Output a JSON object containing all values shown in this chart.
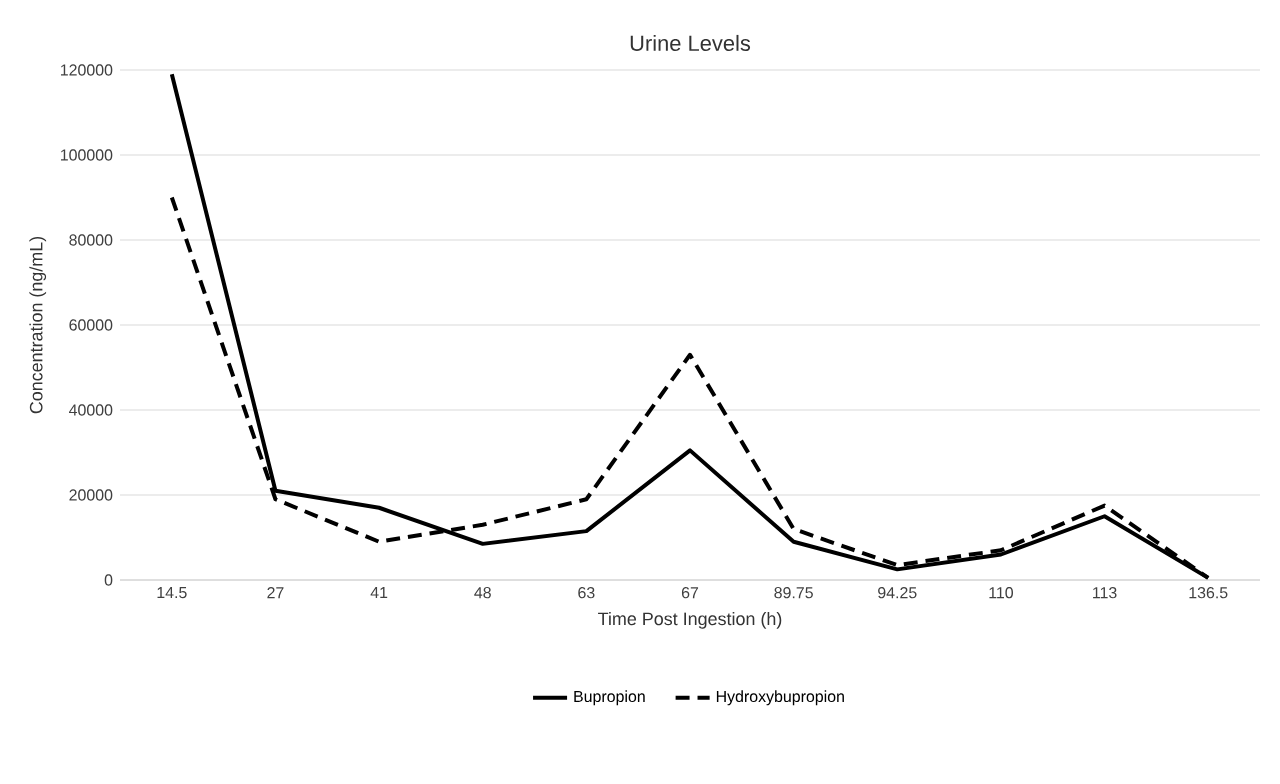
{
  "chart_data": {
    "type": "line",
    "title": "Urine Levels",
    "xlabel": "Time Post Ingestion (h)",
    "ylabel": "Concentration (ng/mL)",
    "categories": [
      "14.5",
      "27",
      "41",
      "48",
      "63",
      "67",
      "89.75",
      "94.25",
      "110",
      "113",
      "136.5"
    ],
    "series": [
      {
        "name": "Bupropion",
        "color": "#000000",
        "line_style": "solid",
        "values": [
          119000,
          21000,
          17000,
          8500,
          11500,
          30500,
          9000,
          2500,
          6000,
          15000,
          500
        ]
      },
      {
        "name": "Hydroxybupropion",
        "color": "#000000",
        "line_style": "dashed",
        "values": [
          90000,
          19000,
          9000,
          13000,
          19000,
          53000,
          12000,
          3500,
          7000,
          17500,
          500
        ]
      }
    ],
    "ylim": [
      0,
      120000
    ],
    "yticks": [
      0,
      20000,
      40000,
      60000,
      80000,
      100000,
      120000
    ],
    "grid": "y",
    "legend": "bottom",
    "marker": "none"
  }
}
